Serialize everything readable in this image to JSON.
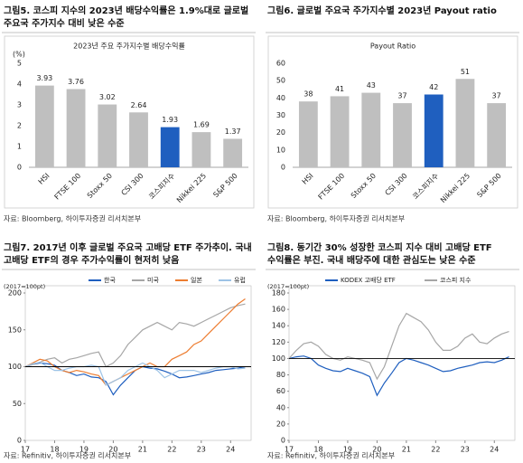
{
  "chart_data": [
    {
      "type": "bar",
      "title_lines": [
        "그림5. 코스피 지수의 2023년 배당수익률은 1.9%대로 글로벌",
        "주요국 주가지수 대비 낮은 수준"
      ],
      "subtitle": "2023년 주요 주가지수별 배당수익률",
      "y_unit": "(%)",
      "categories": [
        "HSI",
        "FTSE 100",
        "Stoxx 50",
        "CSI 300",
        "코스피지수",
        "Nikkei 225",
        "S&P 500"
      ],
      "values": [
        3.93,
        3.76,
        3.02,
        2.64,
        1.93,
        1.69,
        1.37
      ],
      "colors": [
        "#bfbfbf",
        "#bfbfbf",
        "#bfbfbf",
        "#bfbfbf",
        "#1f5fbf",
        "#bfbfbf",
        "#bfbfbf"
      ],
      "ylim": [
        0,
        5
      ],
      "yticks": [
        0,
        1,
        2,
        3,
        4,
        5
      ],
      "source": "자료: Bloomberg, 하이투자증권 리서치본부"
    },
    {
      "type": "bar",
      "title_lines": [
        "그림6. 글로벌 주요국 주가지수별 2023년 Payout ratio"
      ],
      "subtitle": "Payout Ratio",
      "categories": [
        "HSI",
        "FTSE 100",
        "Stoxx 50",
        "CSI 300",
        "코스피지수",
        "Nikkei 225",
        "S&P 500"
      ],
      "values": [
        38,
        41,
        43,
        37,
        42,
        51,
        37
      ],
      "colors": [
        "#bfbfbf",
        "#bfbfbf",
        "#bfbfbf",
        "#bfbfbf",
        "#1f5fbf",
        "#bfbfbf",
        "#bfbfbf"
      ],
      "ylim": [
        0,
        60
      ],
      "yticks": [
        0,
        10,
        20,
        30,
        40,
        50,
        60
      ],
      "source": "자료: Bloomberg, 하이투자증권 리서치본부"
    },
    {
      "type": "line",
      "title_lines": [
        "그림7. 2017년 이후 글로벌 주요국 고배당 ETF 주가추이. 국내",
        "고배당 ETF의 경우 주가수익률이 현저히 낮음"
      ],
      "y_unit": "(2017=100pt)",
      "x": [
        17,
        17.25,
        17.5,
        17.75,
        18,
        18.25,
        18.5,
        18.75,
        19,
        19.25,
        19.5,
        19.75,
        20,
        20.25,
        20.5,
        20.75,
        21,
        21.25,
        21.5,
        21.75,
        22,
        22.25,
        22.5,
        22.75,
        23,
        23.25,
        23.5,
        23.75,
        24,
        24.25,
        24.5
      ],
      "series": [
        {
          "name": "한국",
          "color": "#1f5fbf",
          "values": [
            100,
            103,
            105,
            104,
            102,
            95,
            92,
            88,
            90,
            86,
            85,
            80,
            62,
            75,
            85,
            95,
            100,
            98,
            97,
            94,
            90,
            85,
            86,
            88,
            90,
            92,
            95,
            96,
            97,
            98,
            100
          ]
        },
        {
          "name": "미국",
          "color": "#a6a6a6",
          "values": [
            100,
            103,
            106,
            110,
            112,
            105,
            110,
            112,
            115,
            118,
            120,
            100,
            105,
            115,
            130,
            140,
            150,
            155,
            160,
            155,
            150,
            160,
            158,
            155,
            160,
            165,
            170,
            175,
            180,
            183,
            185
          ]
        },
        {
          "name": "일본",
          "color": "#ed7d31",
          "values": [
            100,
            105,
            110,
            108,
            100,
            95,
            92,
            95,
            93,
            90,
            88,
            75,
            80,
            85,
            90,
            95,
            100,
            105,
            100,
            100,
            110,
            115,
            120,
            130,
            135,
            145,
            155,
            165,
            175,
            185,
            192
          ]
        },
        {
          "name": "유럽",
          "color": "#9dc3e6",
          "values": [
            100,
            104,
            106,
            100,
            95,
            95,
            98,
            100,
            100,
            102,
            100,
            75,
            80,
            85,
            95,
            100,
            105,
            100,
            95,
            85,
            90,
            95,
            95,
            95,
            92,
            95,
            98,
            100,
            100,
            97,
            98
          ]
        }
      ],
      "hline": 100,
      "xlim": [
        17,
        24.7
      ],
      "xticks": [
        17,
        18,
        19,
        20,
        21,
        22,
        23,
        24
      ],
      "ylim": [
        0,
        200
      ],
      "yticks": [
        0,
        50,
        100,
        150,
        200
      ],
      "source": "자료: Refinitiv, 하이투자증권 리서치본부"
    },
    {
      "type": "line",
      "title_lines": [
        "그림8. 동기간 30% 성장한 코스피 지수 대비 고배당 ETF",
        "수익률은 부진. 국내 배당주에 대한 관심도는 낮은 수준"
      ],
      "y_unit": "(2017=100pt)",
      "x": [
        17,
        17.25,
        17.5,
        17.75,
        18,
        18.25,
        18.5,
        18.75,
        19,
        19.25,
        19.5,
        19.75,
        20,
        20.25,
        20.5,
        20.75,
        21,
        21.25,
        21.5,
        21.75,
        22,
        22.25,
        22.5,
        22.75,
        23,
        23.25,
        23.5,
        23.75,
        24,
        24.25,
        24.5
      ],
      "series": [
        {
          "name": "KODEX 고배당 ETF",
          "color": "#1f5fbf",
          "values": [
            100,
            102,
            103,
            100,
            92,
            88,
            85,
            84,
            88,
            85,
            82,
            78,
            55,
            70,
            82,
            95,
            100,
            98,
            95,
            92,
            88,
            84,
            85,
            88,
            90,
            92,
            95,
            96,
            95,
            98,
            102
          ]
        },
        {
          "name": "코스피 지수",
          "color": "#a6a6a6",
          "values": [
            100,
            110,
            118,
            120,
            115,
            105,
            100,
            98,
            102,
            100,
            98,
            95,
            75,
            90,
            115,
            140,
            155,
            150,
            145,
            135,
            120,
            110,
            110,
            115,
            125,
            130,
            120,
            118,
            125,
            130,
            133
          ]
        }
      ],
      "hline": 100,
      "xlim": [
        17,
        24.7
      ],
      "xticks": [
        17,
        18,
        19,
        20,
        21,
        22,
        23,
        24
      ],
      "ylim": [
        0,
        180
      ],
      "yticks": [
        0,
        20,
        40,
        60,
        80,
        100,
        120,
        140,
        160,
        180
      ],
      "source": "자료: Refinitiv, 하이투자증권 리서치본부"
    }
  ]
}
